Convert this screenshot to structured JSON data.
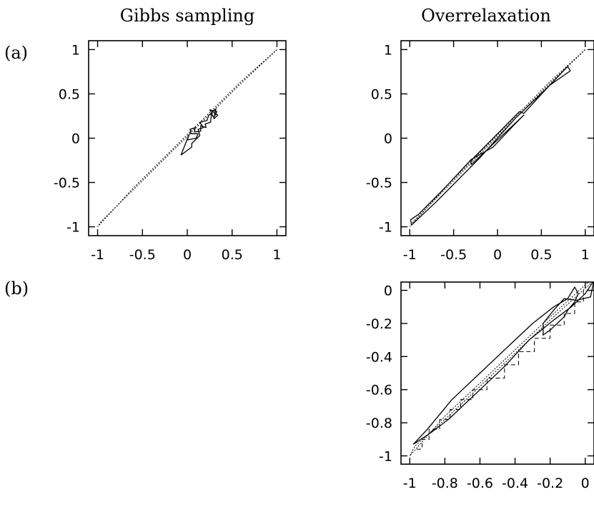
{
  "column_titles": {
    "gibbs": "Gibbs sampling",
    "overrelaxation": "Overrelaxation"
  },
  "row_labels": {
    "a": "(a)",
    "b": "(b)"
  },
  "chart_data": [
    {
      "id": "a-gibbs",
      "type": "line",
      "title": "Gibbs sampling",
      "panel_label": "(a)",
      "xlim": [
        -1.1,
        1.1
      ],
      "ylim": [
        -1.1,
        1.1
      ],
      "xticks": [
        -1,
        -0.5,
        0,
        0.5,
        1
      ],
      "yticks": [
        -1,
        -0.5,
        0,
        0.5,
        1
      ],
      "xtick_labels": [
        "-1",
        "-0.5",
        "0",
        "0.5",
        "1"
      ],
      "ytick_labels": [
        "-1",
        "-0.5",
        "0",
        "0.5",
        "1"
      ],
      "series": [
        {
          "style": "dotted",
          "x": [
            1,
            0.6,
            0.2,
            -0.2,
            -0.6,
            -1,
            -0.96,
            -0.6,
            -0.2,
            0.2,
            0.6,
            0.96,
            1
          ],
          "y": [
            1,
            0.64,
            0.24,
            -0.16,
            -0.56,
            -1,
            -0.94,
            -0.58,
            -0.18,
            0.22,
            0.62,
            0.96,
            1
          ]
        },
        {
          "style": "solid",
          "x": [
            -0.07,
            0.05,
            0.05,
            0.14,
            0.12,
            0.18,
            0.14,
            0.22,
            0.24,
            0.28,
            0.25,
            0.33,
            0.3,
            0.32,
            0.28,
            0.34,
            0.3,
            0.27,
            0.26,
            0.2,
            0.21,
            0.15,
            0.15,
            0.08,
            0.09,
            0.03,
            0.04,
            0.12,
            0.1,
            0.0,
            0.02,
            -0.07
          ],
          "y": [
            -0.19,
            -0.1,
            -0.06,
            0.03,
            0.1,
            0.12,
            0.18,
            0.2,
            0.26,
            0.28,
            0.32,
            0.3,
            0.24,
            0.33,
            0.3,
            0.26,
            0.22,
            0.28,
            0.18,
            0.16,
            0.12,
            0.14,
            0.08,
            0.07,
            0.12,
            0.1,
            0.05,
            0.05,
            0.0,
            -0.02,
            0.04,
            -0.19
          ]
        }
      ]
    },
    {
      "id": "a-overrelaxation",
      "type": "line",
      "title": "Overrelaxation",
      "panel_label": "(a)",
      "xlim": [
        -1.1,
        1.1
      ],
      "ylim": [
        -1.1,
        1.1
      ],
      "xticks": [
        -1,
        -0.5,
        0,
        0.5,
        1
      ],
      "yticks": [
        -1,
        -0.5,
        0,
        0.5,
        1
      ],
      "xtick_labels": [
        "-1",
        "-0.5",
        "0",
        "0.5",
        "1"
      ],
      "ytick_labels": [
        "-1",
        "-0.5",
        "0",
        "0.5",
        "1"
      ],
      "series": [
        {
          "style": "dotted",
          "x": [
            1,
            0.6,
            0.2,
            -0.2,
            -0.6,
            -1,
            -0.96,
            -0.6,
            -0.2,
            0.2,
            0.6,
            0.96,
            1
          ],
          "y": [
            1,
            0.64,
            0.24,
            -0.16,
            -0.56,
            -1,
            -0.94,
            -0.58,
            -0.18,
            0.22,
            0.62,
            0.96,
            1
          ]
        },
        {
          "style": "solid",
          "x": [
            -0.3,
            -0.3,
            0.25,
            0.3,
            0.55,
            0.8,
            0.83,
            0.6,
            0.2,
            -0.2,
            -0.7,
            -0.98,
            -0.99,
            -0.9,
            -0.6,
            -0.3,
            -0.05,
            0.2,
            0.3,
            -0.3
          ],
          "y": [
            -0.3,
            -0.25,
            0.3,
            0.28,
            0.55,
            0.81,
            0.76,
            0.6,
            0.22,
            -0.22,
            -0.72,
            -0.98,
            -0.92,
            -0.86,
            -0.56,
            -0.24,
            -0.1,
            0.16,
            0.26,
            -0.3
          ]
        }
      ]
    },
    {
      "id": "b-overrelaxation",
      "type": "line",
      "panel_label": "(b)",
      "xlim": [
        -1.05,
        0.05
      ],
      "ylim": [
        -1.05,
        0.05
      ],
      "xticks": [
        -1,
        -0.8,
        -0.6,
        -0.4,
        -0.2,
        0
      ],
      "yticks": [
        -1,
        -0.8,
        -0.6,
        -0.4,
        -0.2,
        0
      ],
      "xtick_labels": [
        "-1",
        "-0.8",
        "-0.6",
        "-0.4",
        "-0.2",
        "0"
      ],
      "ytick_labels": [
        "-1",
        "-0.8",
        "-0.6",
        "-0.4",
        "-0.2",
        "0"
      ],
      "series": [
        {
          "style": "dotted",
          "x": [
            0.05,
            -0.2,
            -0.4,
            -0.6,
            -0.8,
            -1.0,
            -0.97,
            -0.8,
            -0.6,
            -0.4,
            -0.2,
            0.05
          ],
          "y": [
            0.08,
            -0.16,
            -0.36,
            -0.56,
            -0.76,
            -1.0,
            -0.94,
            -0.78,
            -0.58,
            -0.38,
            -0.18,
            0.06
          ]
        },
        {
          "style": "solid",
          "x": [
            -0.98,
            -0.88,
            -0.78,
            -0.72,
            -0.6,
            -0.46,
            -0.32,
            -0.18,
            -0.08,
            0.0,
            0.05,
            0.03,
            -0.05,
            -0.12,
            -0.18,
            -0.24,
            -0.24,
            -0.2,
            -0.16,
            -0.12,
            -0.1,
            -0.06,
            -0.04,
            -0.06,
            -0.1,
            -0.18,
            -0.3,
            -0.44,
            -0.6,
            -0.76,
            -0.9,
            -0.98
          ],
          "y": [
            -0.93,
            -0.86,
            -0.78,
            -0.72,
            -0.6,
            -0.46,
            -0.3,
            -0.18,
            -0.1,
            -0.02,
            0.06,
            -0.04,
            -0.06,
            -0.05,
            -0.12,
            -0.2,
            -0.27,
            -0.24,
            -0.2,
            -0.16,
            -0.12,
            -0.07,
            -0.02,
            0.02,
            -0.05,
            -0.1,
            -0.2,
            -0.34,
            -0.5,
            -0.66,
            -0.84,
            -0.93
          ]
        },
        {
          "style": "dashed",
          "x": [
            -0.96,
            -0.93,
            -0.93,
            -0.89,
            -0.89,
            -0.83,
            -0.83,
            -0.77,
            -0.77,
            -0.71,
            -0.71,
            -0.64,
            -0.64,
            -0.56,
            -0.56,
            -0.46,
            -0.46,
            -0.38,
            -0.38,
            -0.29,
            -0.29,
            -0.2,
            -0.2,
            -0.12,
            -0.12,
            -0.06,
            -0.06,
            -0.01,
            -0.01,
            0.03
          ],
          "y": [
            -0.96,
            -0.96,
            -0.9,
            -0.9,
            -0.84,
            -0.84,
            -0.78,
            -0.78,
            -0.72,
            -0.72,
            -0.66,
            -0.66,
            -0.6,
            -0.6,
            -0.53,
            -0.53,
            -0.45,
            -0.45,
            -0.37,
            -0.37,
            -0.29,
            -0.29,
            -0.21,
            -0.21,
            -0.14,
            -0.14,
            -0.07,
            -0.07,
            0.0,
            0.0
          ]
        }
      ]
    }
  ]
}
